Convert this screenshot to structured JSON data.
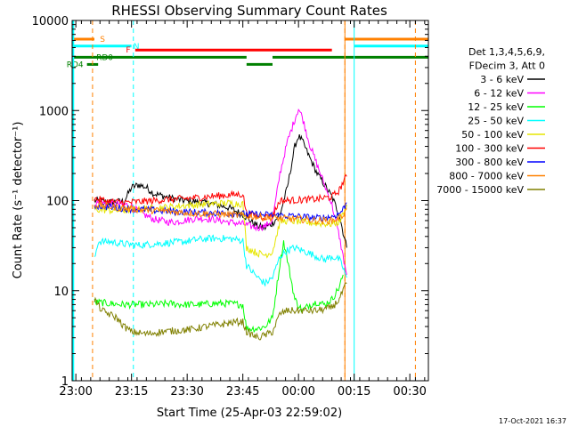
{
  "chart_data": {
    "type": "line",
    "title": "RHESSI Observing Summary Count Rates",
    "xlabel": "Start Time (25-Apr-03 22:59:02)",
    "ylabel": "Count Rate (s⁻¹ detector⁻¹)",
    "yscale": "log",
    "ylim": [
      1,
      10000
    ],
    "xlim_minutes_after_22_59_02": [
      0,
      96
    ],
    "x_ticks": [
      {
        "label": "23:00",
        "t": 1
      },
      {
        "label": "23:15",
        "t": 16
      },
      {
        "label": "23:30",
        "t": 31
      },
      {
        "label": "23:45",
        "t": 46
      },
      {
        "label": "00:00",
        "t": 61
      },
      {
        "label": "00:15",
        "t": 76
      },
      {
        "label": "00:30",
        "t": 91
      }
    ],
    "y_ticks": [
      {
        "label": "1",
        "v": 1
      },
      {
        "label": "10",
        "v": 10
      },
      {
        "label": "100",
        "v": 100
      },
      {
        "label": "1000",
        "v": 1000
      },
      {
        "label": "10000",
        "v": 10000
      }
    ],
    "legend_header": [
      "Det 1,3,4,5,6,9,",
      "FDecim 3, Att 0"
    ],
    "legend_placement": "right",
    "footer_date": "17-Oct-2021 16:37",
    "flags": [
      {
        "label": "S",
        "color": "#ff8000",
        "level": 6200
      },
      {
        "label": "N",
        "color": "#00ffff",
        "level": 5200
      },
      {
        "label": "F",
        "color": "#ff0000",
        "level": 4700
      },
      {
        "label": "RD0",
        "color": "#008000",
        "level": 3900
      },
      {
        "label": "RD4",
        "color": "#008000",
        "level": 3250
      }
    ],
    "series": [
      {
        "name": "3 - 6 keV",
        "color": "#000000",
        "points": [
          [
            6,
            100
          ],
          [
            10,
            96
          ],
          [
            14,
            98
          ],
          [
            16,
            140
          ],
          [
            18,
            150
          ],
          [
            20,
            140
          ],
          [
            22,
            120
          ],
          [
            26,
            108
          ],
          [
            30,
            100
          ],
          [
            34,
            96
          ],
          [
            38,
            92
          ],
          [
            42,
            84
          ],
          [
            46,
            70
          ],
          [
            48,
            60
          ],
          [
            50,
            52
          ],
          [
            52,
            50
          ],
          [
            54,
            56
          ],
          [
            56,
            70
          ],
          [
            58,
            140
          ],
          [
            60,
            400
          ],
          [
            61,
            520
          ],
          [
            62,
            460
          ],
          [
            64,
            300
          ],
          [
            66,
            200
          ],
          [
            68,
            150
          ],
          [
            70,
            110
          ],
          [
            72,
            70
          ],
          [
            73,
            45
          ],
          [
            74,
            30
          ]
        ]
      },
      {
        "name": "6 - 12 keV",
        "color": "#ff00ff",
        "points": [
          [
            6,
            95
          ],
          [
            10,
            93
          ],
          [
            14,
            90
          ],
          [
            16,
            88
          ],
          [
            18,
            74
          ],
          [
            20,
            68
          ],
          [
            22,
            62
          ],
          [
            24,
            60
          ],
          [
            26,
            58
          ],
          [
            28,
            58
          ],
          [
            30,
            60
          ],
          [
            34,
            64
          ],
          [
            38,
            62
          ],
          [
            42,
            58
          ],
          [
            46,
            55
          ],
          [
            48,
            52
          ],
          [
            50,
            50
          ],
          [
            52,
            52
          ],
          [
            54,
            60
          ],
          [
            56,
            200
          ],
          [
            58,
            450
          ],
          [
            60,
            800
          ],
          [
            61,
            1050
          ],
          [
            62,
            850
          ],
          [
            64,
            420
          ],
          [
            66,
            250
          ],
          [
            68,
            150
          ],
          [
            70,
            90
          ],
          [
            72,
            40
          ],
          [
            73,
            24
          ],
          [
            74,
            15
          ]
        ]
      },
      {
        "name": "12 - 25 keV",
        "color": "#00ff00",
        "points": [
          [
            6,
            7.5
          ],
          [
            10,
            7.2
          ],
          [
            14,
            7.0
          ],
          [
            18,
            7.0
          ],
          [
            22,
            7.0
          ],
          [
            26,
            7.2
          ],
          [
            30,
            7.0
          ],
          [
            34,
            7.0
          ],
          [
            38,
            7.2
          ],
          [
            42,
            7.2
          ],
          [
            46,
            7.0
          ],
          [
            47,
            3.8
          ],
          [
            50,
            3.8
          ],
          [
            52,
            4.0
          ],
          [
            54,
            5.0
          ],
          [
            56,
            20
          ],
          [
            57,
            35
          ],
          [
            58,
            22
          ],
          [
            60,
            8
          ],
          [
            62,
            6
          ],
          [
            64,
            7
          ],
          [
            66,
            7.5
          ],
          [
            68,
            7
          ],
          [
            70,
            8
          ],
          [
            72,
            11
          ],
          [
            73,
            15
          ]
        ]
      },
      {
        "name": "25 - 50 keV",
        "color": "#00ffff",
        "points": [
          [
            6,
            22
          ],
          [
            7,
            35
          ],
          [
            10,
            35
          ],
          [
            14,
            33
          ],
          [
            18,
            32
          ],
          [
            22,
            33
          ],
          [
            26,
            34
          ],
          [
            30,
            35
          ],
          [
            34,
            37
          ],
          [
            38,
            38
          ],
          [
            42,
            38
          ],
          [
            46,
            36
          ],
          [
            47,
            19
          ],
          [
            50,
            14
          ],
          [
            52,
            12
          ],
          [
            54,
            14
          ],
          [
            56,
            24
          ],
          [
            58,
            28
          ],
          [
            60,
            30
          ],
          [
            64,
            26
          ],
          [
            68,
            22
          ],
          [
            70,
            24
          ],
          [
            72,
            22
          ],
          [
            73,
            18
          ],
          [
            74,
            14
          ]
        ]
      },
      {
        "name": "50 - 100 keV",
        "color": "#e6e600",
        "points": [
          [
            6,
            80
          ],
          [
            10,
            78
          ],
          [
            14,
            78
          ],
          [
            18,
            80
          ],
          [
            22,
            82
          ],
          [
            26,
            85
          ],
          [
            30,
            88
          ],
          [
            34,
            90
          ],
          [
            38,
            92
          ],
          [
            42,
            94
          ],
          [
            46,
            92
          ],
          [
            47,
            30
          ],
          [
            50,
            26
          ],
          [
            52,
            25
          ],
          [
            54,
            27
          ],
          [
            56,
            58
          ],
          [
            58,
            60
          ],
          [
            62,
            58
          ],
          [
            66,
            56
          ],
          [
            70,
            55
          ],
          [
            72,
            58
          ],
          [
            73,
            70
          ],
          [
            74,
            90
          ]
        ]
      },
      {
        "name": "100 - 300 keV",
        "color": "#ff0000",
        "points": [
          [
            6,
            105
          ],
          [
            10,
            98
          ],
          [
            14,
            95
          ],
          [
            18,
            97
          ],
          [
            22,
            100
          ],
          [
            26,
            103
          ],
          [
            30,
            105
          ],
          [
            34,
            108
          ],
          [
            38,
            112
          ],
          [
            42,
            115
          ],
          [
            46,
            118
          ],
          [
            47,
            72
          ],
          [
            50,
            68
          ],
          [
            52,
            66
          ],
          [
            54,
            68
          ],
          [
            56,
            100
          ],
          [
            58,
            100
          ],
          [
            62,
            102
          ],
          [
            66,
            104
          ],
          [
            70,
            110
          ],
          [
            72,
            130
          ],
          [
            73,
            160
          ],
          [
            74,
            185
          ]
        ]
      },
      {
        "name": "300 - 800 keV",
        "color": "#0000ff",
        "points": [
          [
            6,
            88
          ],
          [
            10,
            85
          ],
          [
            14,
            82
          ],
          [
            18,
            80
          ],
          [
            22,
            78
          ],
          [
            26,
            76
          ],
          [
            30,
            75
          ],
          [
            34,
            74
          ],
          [
            38,
            73
          ],
          [
            42,
            72
          ],
          [
            46,
            71
          ],
          [
            50,
            70
          ],
          [
            54,
            69
          ],
          [
            58,
            68
          ],
          [
            62,
            66
          ],
          [
            66,
            64
          ],
          [
            70,
            66
          ],
          [
            72,
            72
          ],
          [
            73,
            80
          ],
          [
            74,
            95
          ]
        ]
      },
      {
        "name": "800 - 7000 keV",
        "color": "#ff8000",
        "points": [
          [
            6,
            90
          ],
          [
            10,
            86
          ],
          [
            14,
            82
          ],
          [
            18,
            80
          ],
          [
            22,
            78
          ],
          [
            26,
            76
          ],
          [
            30,
            74
          ],
          [
            34,
            72
          ],
          [
            38,
            71
          ],
          [
            42,
            70
          ],
          [
            46,
            68
          ],
          [
            50,
            66
          ],
          [
            54,
            64
          ],
          [
            58,
            63
          ],
          [
            62,
            62
          ],
          [
            66,
            60
          ],
          [
            70,
            60
          ],
          [
            72,
            64
          ],
          [
            73,
            70
          ],
          [
            74,
            80
          ]
        ]
      },
      {
        "name": "7000 - 15000 keV",
        "color": "#808000",
        "points": [
          [
            6,
            8.0
          ],
          [
            8,
            6.0
          ],
          [
            12,
            5.0
          ],
          [
            14,
            4.0
          ],
          [
            16,
            3.5
          ],
          [
            20,
            3.3
          ],
          [
            24,
            3.5
          ],
          [
            28,
            3.6
          ],
          [
            32,
            3.7
          ],
          [
            36,
            4.0
          ],
          [
            40,
            4.2
          ],
          [
            44,
            4.5
          ],
          [
            46,
            4.5
          ],
          [
            47,
            3.5
          ],
          [
            50,
            3.0
          ],
          [
            52,
            3.2
          ],
          [
            54,
            3.5
          ],
          [
            56,
            5.5
          ],
          [
            58,
            6.0
          ],
          [
            62,
            6.0
          ],
          [
            66,
            6.0
          ],
          [
            70,
            6.5
          ],
          [
            72,
            8.0
          ],
          [
            73,
            10
          ],
          [
            74,
            12
          ]
        ]
      }
    ]
  }
}
